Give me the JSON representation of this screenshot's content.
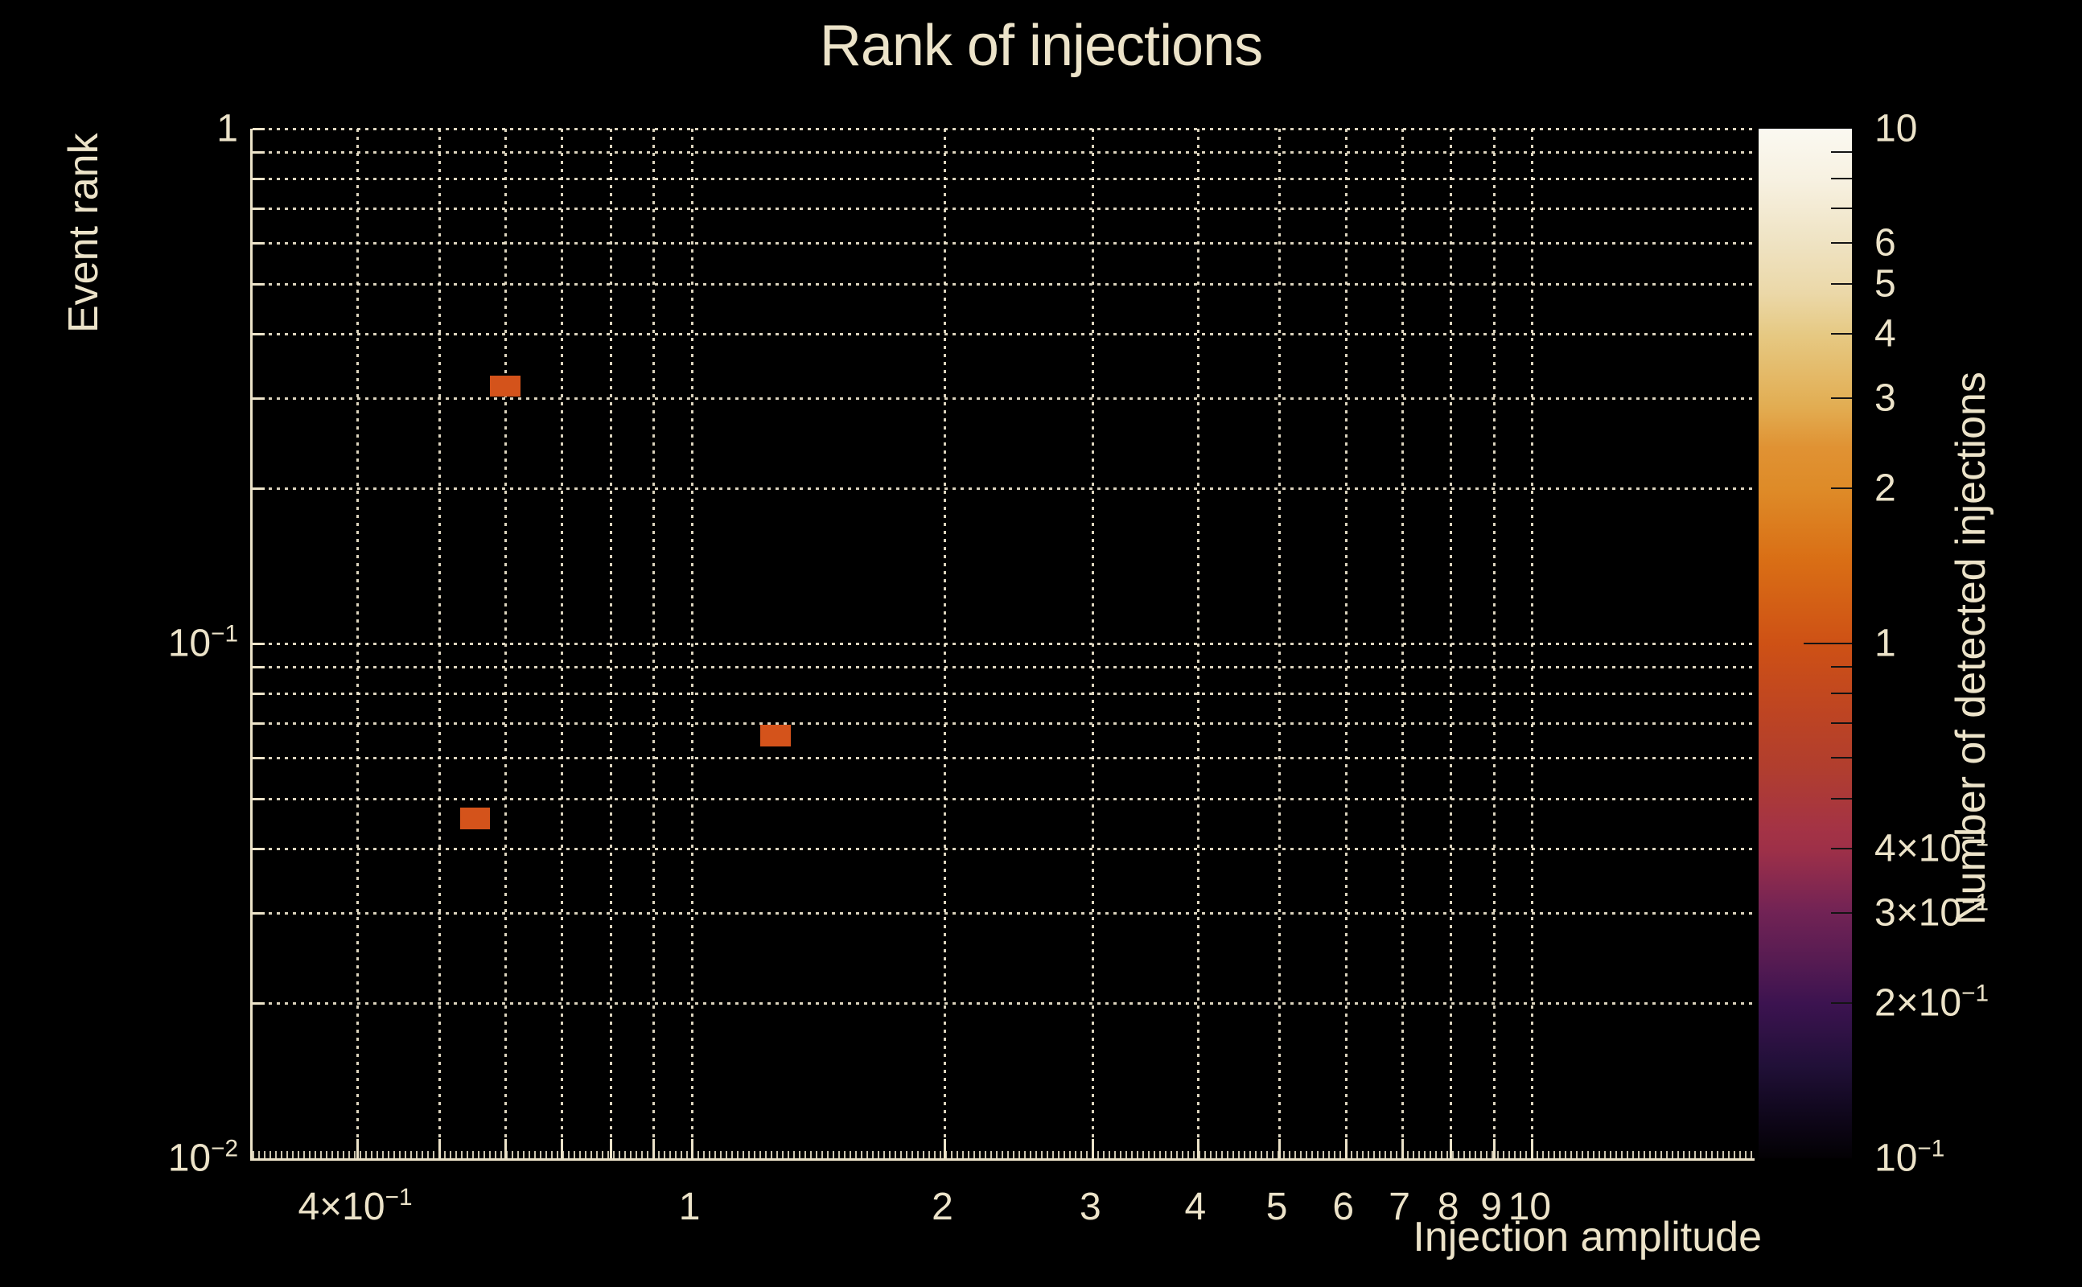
{
  "chart_data": {
    "type": "heatmap",
    "title": "Rank of injections",
    "background": "#000000",
    "text_color": "#ece3c9",
    "grid": true,
    "grid_style": "dotted",
    "x_axis": {
      "title": "Injection amplitude",
      "scale": "log",
      "range": [
        0.3,
        18.4
      ],
      "gridlines": [
        0.4,
        0.5,
        0.6,
        0.7,
        0.8,
        0.9,
        1,
        2,
        3,
        4,
        5,
        6,
        7,
        8,
        9,
        10
      ],
      "tick_labels": [
        {
          "value": 0.4,
          "base": "4×10",
          "sup": "−1"
        },
        {
          "value": 1,
          "base": "1"
        },
        {
          "value": 2,
          "base": "2"
        },
        {
          "value": 3,
          "base": "3"
        },
        {
          "value": 4,
          "base": "4"
        },
        {
          "value": 5,
          "base": "5"
        },
        {
          "value": 6,
          "base": "6"
        },
        {
          "value": 7,
          "base": "7"
        },
        {
          "value": 8,
          "base": "8"
        },
        {
          "value": 9,
          "base": "9"
        },
        {
          "value": 10,
          "base": "10"
        }
      ]
    },
    "y_axis": {
      "title": "Event rank",
      "scale": "log",
      "range": [
        0.01,
        1
      ],
      "gridlines": [
        0.02,
        0.03,
        0.04,
        0.05,
        0.06,
        0.07,
        0.08,
        0.09,
        0.1,
        0.2,
        0.3,
        0.4,
        0.5,
        0.6,
        0.7,
        0.8,
        0.9,
        1
      ],
      "tick_labels": [
        {
          "value": 1,
          "base": "1"
        },
        {
          "value": 0.1,
          "base": "10",
          "sup": "−1"
        },
        {
          "value": 0.01,
          "base": "10",
          "sup": "−2"
        }
      ]
    },
    "colorbar": {
      "title": "Number of detected injections",
      "scale": "log",
      "range": [
        0.1,
        10
      ],
      "minor_ticks": [
        0.2,
        0.3,
        0.4,
        0.5,
        0.6,
        0.7,
        0.8,
        0.9,
        2,
        3,
        4,
        5,
        6,
        7,
        8,
        9
      ],
      "major_ticks": [
        1
      ],
      "tick_labels": [
        {
          "value": 10,
          "base": "10"
        },
        {
          "value": 6,
          "base": "6"
        },
        {
          "value": 5,
          "base": "5"
        },
        {
          "value": 4,
          "base": "4"
        },
        {
          "value": 3,
          "base": "3"
        },
        {
          "value": 2,
          "base": "2"
        },
        {
          "value": 1,
          "base": "1"
        },
        {
          "value": 0.4,
          "base": "4×10",
          "sup": "−1"
        },
        {
          "value": 0.3,
          "base": "3×10",
          "sup": "−1"
        },
        {
          "value": 0.2,
          "base": "2×10",
          "sup": "−1"
        },
        {
          "value": 0.1,
          "base": "10",
          "sup": "−1"
        }
      ],
      "gradient_top_to_bottom": [
        {
          "stop": 0.0,
          "color": "#fbf9f1"
        },
        {
          "stop": 0.05,
          "color": "#f7f1e1"
        },
        {
          "stop": 0.11,
          "color": "#efe3c3"
        },
        {
          "stop": 0.16,
          "color": "#ebd8a8"
        },
        {
          "stop": 0.2,
          "color": "#e6c983"
        },
        {
          "stop": 0.27,
          "color": "#e2ad52"
        },
        {
          "stop": 0.31,
          "color": "#e09233"
        },
        {
          "stop": 0.35,
          "color": "#de8b28"
        },
        {
          "stop": 0.42,
          "color": "#d96e15"
        },
        {
          "stop": 0.5,
          "color": "#ce5115"
        },
        {
          "stop": 0.57,
          "color": "#bd4423"
        },
        {
          "stop": 0.62,
          "color": "#b13e2e"
        },
        {
          "stop": 0.68,
          "color": "#a43345"
        },
        {
          "stop": 0.7,
          "color": "#9e3048"
        },
        {
          "stop": 0.76,
          "color": "#722355"
        },
        {
          "stop": 0.81,
          "color": "#551b52"
        },
        {
          "stop": 0.85,
          "color": "#3c1350"
        },
        {
          "stop": 0.91,
          "color": "#211038"
        },
        {
          "stop": 0.95,
          "color": "#120820"
        },
        {
          "stop": 1.0,
          "color": "#030104"
        }
      ]
    },
    "cells": [
      {
        "x_range": [
          0.575,
          0.625
        ],
        "y_range": [
          0.302,
          0.331
        ],
        "value": 1
      },
      {
        "x_range": [
          1.205,
          1.31
        ],
        "y_range": [
          0.063,
          0.0695
        ],
        "value": 1
      },
      {
        "x_range": [
          0.53,
          0.575
        ],
        "y_range": [
          0.0435,
          0.048
        ],
        "value": 1
      }
    ],
    "cell_value_color": "#d4531b"
  }
}
